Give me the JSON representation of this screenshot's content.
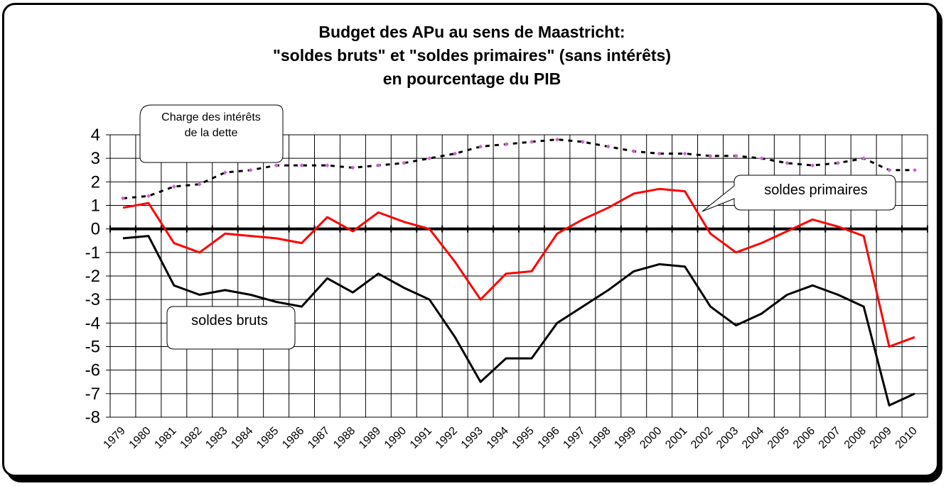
{
  "colors": {
    "primary_line": "#ff0000",
    "gross_line": "#000000",
    "interest_line": "#000000",
    "interest_markers": "#cc66cc",
    "grid": "#000000"
  },
  "chart_data": {
    "type": "line",
    "title": [
      "Budget des APu au sens de Maastricht:",
      "\"soldes bruts\" et \"soldes primaires\" (sans intérêts)",
      "en pourcentage du  PIB"
    ],
    "xlabel": "",
    "ylabel": "",
    "ylim": [
      -8,
      4
    ],
    "yticks": [
      4,
      3,
      2,
      1,
      0,
      -1,
      -2,
      -3,
      -4,
      -5,
      -6,
      -7,
      -8
    ],
    "grid": true,
    "categories": [
      "1979",
      "1980",
      "1981",
      "1982",
      "1983",
      "1984",
      "1985",
      "1986",
      "1987",
      "1988",
      "1989",
      "1990",
      "1991",
      "1992",
      "1993",
      "1994",
      "1995",
      "1996",
      "1997",
      "1998",
      "1999",
      "2000",
      "2001",
      "2002",
      "2003",
      "2004",
      "2005",
      "2006",
      "2007",
      "2008",
      "2009",
      "2010"
    ],
    "series": [
      {
        "name": "soldes primaires",
        "style": "solid-red",
        "values": [
          0.9,
          1.1,
          -0.6,
          -1.0,
          -0.2,
          -0.3,
          -0.4,
          -0.6,
          0.5,
          -0.1,
          0.7,
          0.3,
          0.0,
          -1.4,
          -3.0,
          -1.9,
          -1.8,
          -0.2,
          0.4,
          0.9,
          1.5,
          1.7,
          1.6,
          -0.2,
          -1.0,
          -0.6,
          -0.1,
          0.4,
          0.1,
          -0.3,
          -5.0,
          -4.6
        ]
      },
      {
        "name": "soldes bruts",
        "style": "solid-black",
        "values": [
          -0.4,
          -0.3,
          -2.4,
          -2.8,
          -2.6,
          -2.8,
          -3.1,
          -3.3,
          -2.1,
          -2.7,
          -1.9,
          -2.5,
          -3.0,
          -4.6,
          -6.5,
          -5.5,
          -5.5,
          -4.0,
          -3.3,
          -2.6,
          -1.8,
          -1.5,
          -1.6,
          -3.3,
          -4.1,
          -3.6,
          -2.8,
          -2.4,
          -2.8,
          -3.3,
          -7.5,
          -7.0
        ]
      },
      {
        "name": "Charge des intérêts de la dette",
        "style": "dashed-black-with-markers",
        "values": [
          1.3,
          1.4,
          1.8,
          1.9,
          2.4,
          2.5,
          2.7,
          2.7,
          2.7,
          2.6,
          2.7,
          2.8,
          3.0,
          3.2,
          3.5,
          3.6,
          3.7,
          3.8,
          3.7,
          3.5,
          3.3,
          3.2,
          3.2,
          3.1,
          3.1,
          3.0,
          2.8,
          2.7,
          2.8,
          3.0,
          2.5,
          2.5
        ]
      }
    ],
    "annotations": {
      "interest": [
        "Charge des intérêts",
        "de la dette"
      ],
      "primary": "soldes primaires",
      "gross": "soldes bruts"
    }
  }
}
